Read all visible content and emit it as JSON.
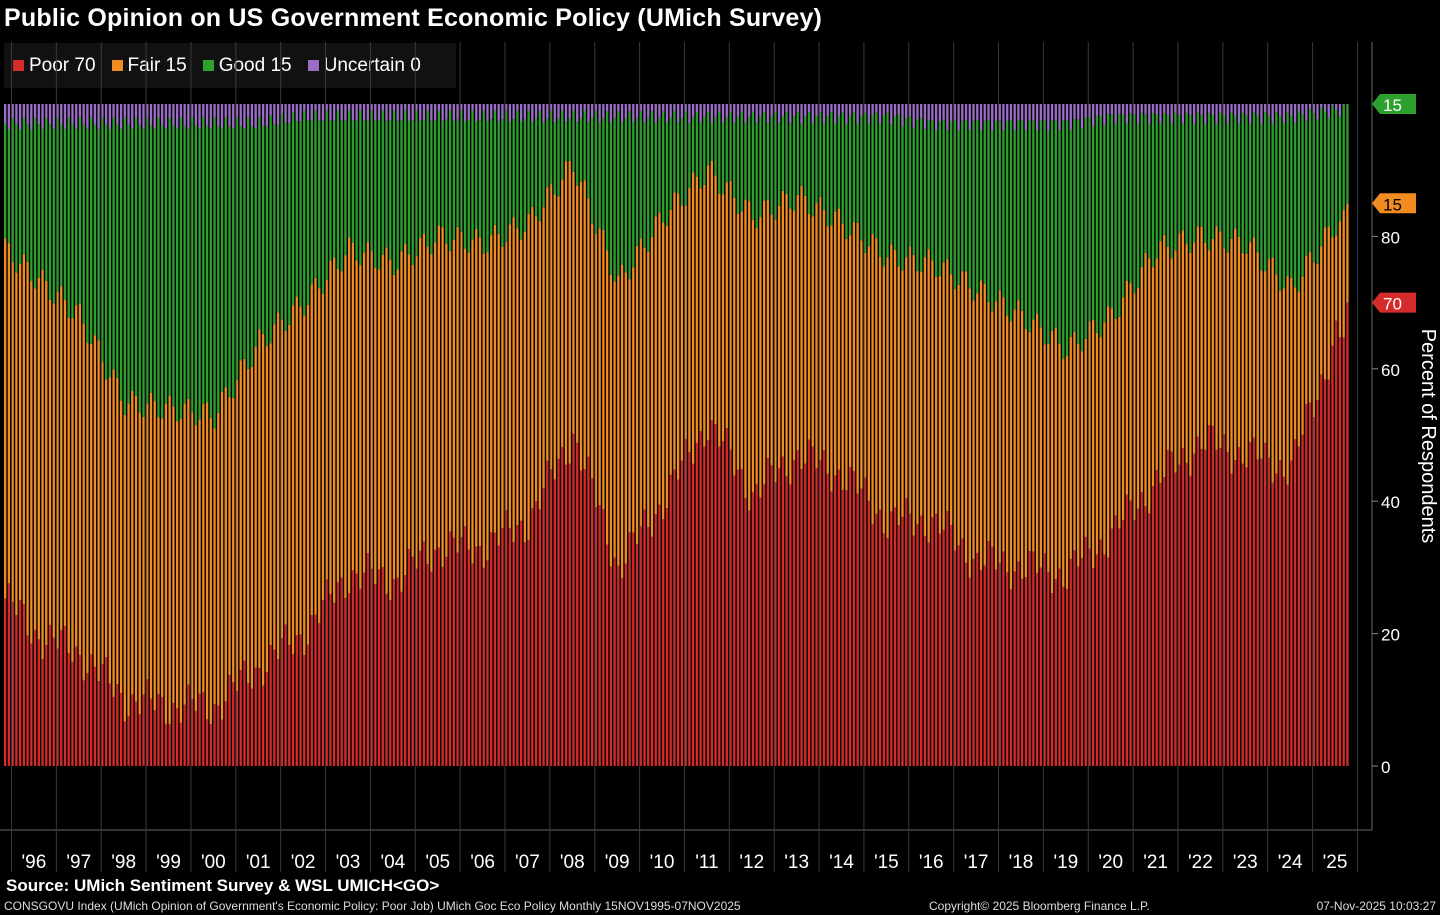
{
  "title": "Public Opinion on US Government Economic Policy (UMich Survey)",
  "legend": [
    {
      "label": "Poor 70",
      "color": "#d52b2b"
    },
    {
      "label": "Fair 15",
      "color": "#f28c21"
    },
    {
      "label": "Good 15",
      "color": "#2da12d"
    },
    {
      "label": "Uncertain 0",
      "color": "#9b6dc6"
    }
  ],
  "source": "Source: UMich Sentiment Survey & WSL UMICH<GO>",
  "footer": {
    "left": "CONSGOVU Index (UMich Opinion of Government's Economic Policy: Poor Job) UMich Goc Eco Policy Monthly 15NOV1995-07NOV2025",
    "middle": "Copyright© 2025 Bloomberg Finance L.P.",
    "right": "07-Nov-2025 10:03:27"
  },
  "chart_data": {
    "type": "bar",
    "stacked": true,
    "frequency": "monthly",
    "x_start": "1995-11",
    "x_end": "2025-10",
    "ylabel": "Percent of Respondents",
    "ylim": [
      0,
      100
    ],
    "ytick_labels": [
      "0",
      "20",
      "40",
      "60",
      "80"
    ],
    "xtick_labels": [
      "'96",
      "'97",
      "'98",
      "'99",
      "'00",
      "'01",
      "'02",
      "'03",
      "'04",
      "'05",
      "'06",
      "'07",
      "'08",
      "'09",
      "'10",
      "'11",
      "'12",
      "'13",
      "'14",
      "'15",
      "'16",
      "'17",
      "'18",
      "'19",
      "'20",
      "'21",
      "'22",
      "'23",
      "'24",
      "'25"
    ],
    "series": [
      {
        "name": "Poor",
        "color": "#d52b2b",
        "last_value": 70
      },
      {
        "name": "Fair",
        "color": "#f28c21",
        "last_value": 15
      },
      {
        "name": "Good",
        "color": "#2da12d",
        "last_value": 15
      },
      {
        "name": "Uncertain",
        "color": "#9b6dc6",
        "last_value": 0
      }
    ],
    "annual_profile": [
      {
        "year": 1995,
        "poor": 28,
        "poor_fair": 80,
        "uncertain": 3
      },
      {
        "year": 1996,
        "poor": 20,
        "poor_fair": 74,
        "uncertain": 3
      },
      {
        "year": 1997,
        "poor": 17,
        "poor_fair": 68,
        "uncertain": 3
      },
      {
        "year": 1998,
        "poor": 10,
        "poor_fair": 55,
        "uncertain": 3
      },
      {
        "year": 1999,
        "poor": 9,
        "poor_fair": 54,
        "uncertain": 3
      },
      {
        "year": 2000,
        "poor": 9,
        "poor_fair": 53,
        "uncertain": 3
      },
      {
        "year": 2001,
        "poor": 15,
        "poor_fair": 64,
        "uncertain": 3
      },
      {
        "year": 2002,
        "poor": 20,
        "poor_fair": 70,
        "uncertain": 2
      },
      {
        "year": 2003,
        "poor": 29,
        "poor_fair": 78,
        "uncertain": 2
      },
      {
        "year": 2004,
        "poor": 28,
        "poor_fair": 76,
        "uncertain": 2
      },
      {
        "year": 2005,
        "poor": 33,
        "poor_fair": 80,
        "uncertain": 2
      },
      {
        "year": 2006,
        "poor": 33,
        "poor_fair": 79,
        "uncertain": 2
      },
      {
        "year": 2007,
        "poor": 37,
        "poor_fair": 82,
        "uncertain": 2
      },
      {
        "year": 2008,
        "poor": 50,
        "poor_fair": 91,
        "uncertain": 2
      },
      {
        "year": 2009,
        "poor": 30,
        "poor_fair": 73,
        "uncertain": 2
      },
      {
        "year": 2010,
        "poor": 40,
        "poor_fair": 83,
        "uncertain": 2
      },
      {
        "year": 2011,
        "poor": 52,
        "poor_fair": 90,
        "uncertain": 2
      },
      {
        "year": 2012,
        "poor": 41,
        "poor_fair": 83,
        "uncertain": 2
      },
      {
        "year": 2013,
        "poor": 47,
        "poor_fair": 86,
        "uncertain": 2
      },
      {
        "year": 2014,
        "poor": 44,
        "poor_fair": 82,
        "uncertain": 2
      },
      {
        "year": 2015,
        "poor": 37,
        "poor_fair": 77,
        "uncertain": 2
      },
      {
        "year": 2016,
        "poor": 37,
        "poor_fair": 76,
        "uncertain": 3
      },
      {
        "year": 2017,
        "poor": 31,
        "poor_fair": 72,
        "uncertain": 3
      },
      {
        "year": 2018,
        "poor": 30,
        "poor_fair": 68,
        "uncertain": 3
      },
      {
        "year": 2019,
        "poor": 29,
        "poor_fair": 63,
        "uncertain": 3
      },
      {
        "year": 2020,
        "poor": 35,
        "poor_fair": 68,
        "uncertain": 2
      },
      {
        "year": 2021,
        "poor": 43,
        "poor_fair": 78,
        "uncertain": 2
      },
      {
        "year": 2022,
        "poor": 49,
        "poor_fair": 80,
        "uncertain": 2
      },
      {
        "year": 2023,
        "poor": 47,
        "poor_fair": 79,
        "uncertain": 2
      },
      {
        "year": 2024,
        "poor": 45,
        "poor_fair": 72,
        "uncertain": 2
      },
      {
        "year": 2025,
        "poor": 65,
        "poor_fair": 82,
        "uncertain": 1
      }
    ],
    "grid": false,
    "legend_position": "top-left",
    "y_axis_position": "right",
    "end_value_labels": [
      {
        "value": "15",
        "at": 100,
        "color": "#2da12d"
      },
      {
        "value": "15",
        "at": 85,
        "color": "#f28c21"
      },
      {
        "value": "70",
        "at": 70,
        "color": "#d52b2b"
      }
    ]
  }
}
